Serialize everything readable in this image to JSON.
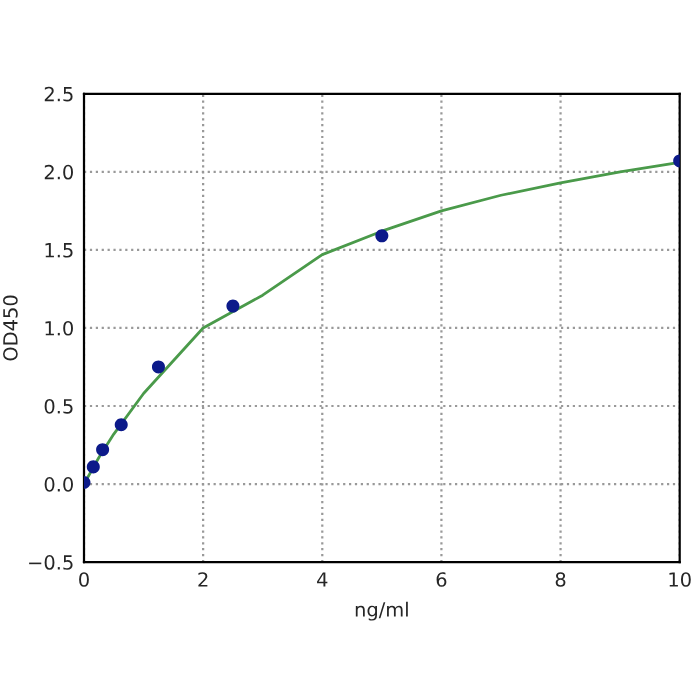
{
  "chart_data": {
    "type": "scatter",
    "xlabel": "ng/ml",
    "ylabel": "OD450",
    "series": [
      {
        "color": "#0c1a8a",
        "marker": "circle",
        "x": [
          0,
          0.156,
          0.3125,
          0.625,
          1.25,
          2.5,
          5,
          10
        ],
        "values": [
          0.01,
          0.11,
          0.22,
          0.38,
          0.75,
          1.14,
          1.59,
          2.07
        ]
      },
      {
        "type": "line",
        "color": "#4a9a4a",
        "marker": "none",
        "line_style": "solid",
        "x": [
          0,
          0.25,
          0.5,
          1,
          1.5,
          2,
          3,
          4,
          5,
          6,
          7,
          8,
          9,
          10
        ],
        "values": [
          0.0,
          0.17,
          0.32,
          0.58,
          0.79,
          1.0,
          1.21,
          1.47,
          1.62,
          1.75,
          1.85,
          1.93,
          2.0,
          2.06
        ]
      }
    ],
    "xlim": [
      0,
      10
    ],
    "xticks": [
      0,
      2,
      4,
      6,
      8,
      10
    ],
    "ylim": [
      -0.5,
      2.5
    ],
    "yticks": [
      {
        "value": -0.5,
        "label": "−0.5"
      },
      {
        "value": 0,
        "label": "0.0"
      },
      0.5,
      {
        "value": 1,
        "label": "1.0"
      },
      1.5,
      {
        "value": 2,
        "label": "2.0"
      },
      2.5
    ],
    "grid": true
  }
}
